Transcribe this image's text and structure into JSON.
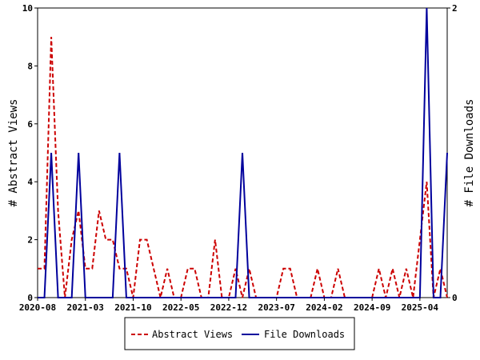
{
  "chart_data": {
    "type": "line",
    "x_ticks": [
      "2020-08",
      "2021-03",
      "2021-10",
      "2022-05",
      "2022-12",
      "2023-07",
      "2024-02",
      "2024-09",
      "2025-04"
    ],
    "ylabel_left": "# Abstract Views",
    "ylabel_right": "# File Downloads",
    "ylim_left": [
      0,
      10
    ],
    "yticks_left": [
      0,
      2,
      4,
      6,
      8,
      10
    ],
    "ylim_right": [
      0,
      2
    ],
    "yticks_right": [
      0,
      2
    ],
    "grid": false,
    "legend_position": "bottom",
    "series": [
      {
        "name": "Abstract Views",
        "axis": "left",
        "color": "#cc0000",
        "style": "dashed",
        "x": [
          "2020-08",
          "2020-09",
          "2020-10",
          "2020-11",
          "2020-12",
          "2021-01",
          "2021-02",
          "2021-03",
          "2021-04",
          "2021-05",
          "2021-06",
          "2021-07",
          "2021-08",
          "2021-09",
          "2021-10",
          "2021-11",
          "2021-12",
          "2022-01",
          "2022-02",
          "2022-03",
          "2022-04",
          "2022-05",
          "2022-06",
          "2022-07",
          "2022-08",
          "2022-09",
          "2022-10",
          "2022-11",
          "2022-12",
          "2023-01",
          "2023-02",
          "2023-03",
          "2023-04",
          "2023-05",
          "2023-06",
          "2023-07",
          "2023-08",
          "2023-09",
          "2023-10",
          "2023-11",
          "2023-12",
          "2024-01",
          "2024-02",
          "2024-03",
          "2024-04",
          "2024-05",
          "2024-06",
          "2024-07",
          "2024-08",
          "2024-09",
          "2024-10",
          "2024-11",
          "2024-12",
          "2025-01",
          "2025-02",
          "2025-03",
          "2025-04",
          "2025-05",
          "2025-06",
          "2025-07",
          "2025-08"
        ],
        "values": [
          1,
          1,
          9,
          3,
          0,
          2,
          3,
          1,
          1,
          3,
          2,
          2,
          1,
          1,
          0,
          2,
          2,
          1,
          0,
          1,
          0,
          0,
          1,
          1,
          0,
          0,
          2,
          0,
          0,
          1,
          0,
          1,
          0,
          0,
          0,
          0,
          1,
          1,
          0,
          0,
          0,
          1,
          0,
          0,
          1,
          0,
          0,
          0,
          0,
          0,
          1,
          0,
          1,
          0,
          1,
          0,
          2,
          4,
          0,
          1,
          0
        ]
      },
      {
        "name": "File Downloads",
        "axis": "right",
        "color": "#00009c",
        "style": "solid",
        "x": [
          "2020-08",
          "2020-09",
          "2020-10",
          "2020-11",
          "2020-12",
          "2021-01",
          "2021-02",
          "2021-03",
          "2021-04",
          "2021-05",
          "2021-06",
          "2021-07",
          "2021-08",
          "2021-09",
          "2021-10",
          "2021-11",
          "2021-12",
          "2022-01",
          "2022-02",
          "2022-03",
          "2022-04",
          "2022-05",
          "2022-06",
          "2022-07",
          "2022-08",
          "2022-09",
          "2022-10",
          "2022-11",
          "2022-12",
          "2023-01",
          "2023-02",
          "2023-03",
          "2023-04",
          "2023-05",
          "2023-06",
          "2023-07",
          "2023-08",
          "2023-09",
          "2023-10",
          "2023-11",
          "2023-12",
          "2024-01",
          "2024-02",
          "2024-03",
          "2024-04",
          "2024-05",
          "2024-06",
          "2024-07",
          "2024-08",
          "2024-09",
          "2024-10",
          "2024-11",
          "2024-12",
          "2025-01",
          "2025-02",
          "2025-03",
          "2025-04",
          "2025-05",
          "2025-06",
          "2025-07",
          "2025-08"
        ],
        "values": [
          0,
          0,
          1,
          0,
          0,
          0,
          1,
          0,
          0,
          0,
          0,
          0,
          1,
          0,
          0,
          0,
          0,
          0,
          0,
          0,
          0,
          0,
          0,
          0,
          0,
          0,
          0,
          0,
          0,
          0,
          1,
          0,
          0,
          0,
          0,
          0,
          0,
          0,
          0,
          0,
          0,
          0,
          0,
          0,
          0,
          0,
          0,
          0,
          0,
          0,
          0,
          0,
          0,
          0,
          0,
          0,
          0,
          2,
          0,
          0,
          1
        ]
      }
    ]
  }
}
